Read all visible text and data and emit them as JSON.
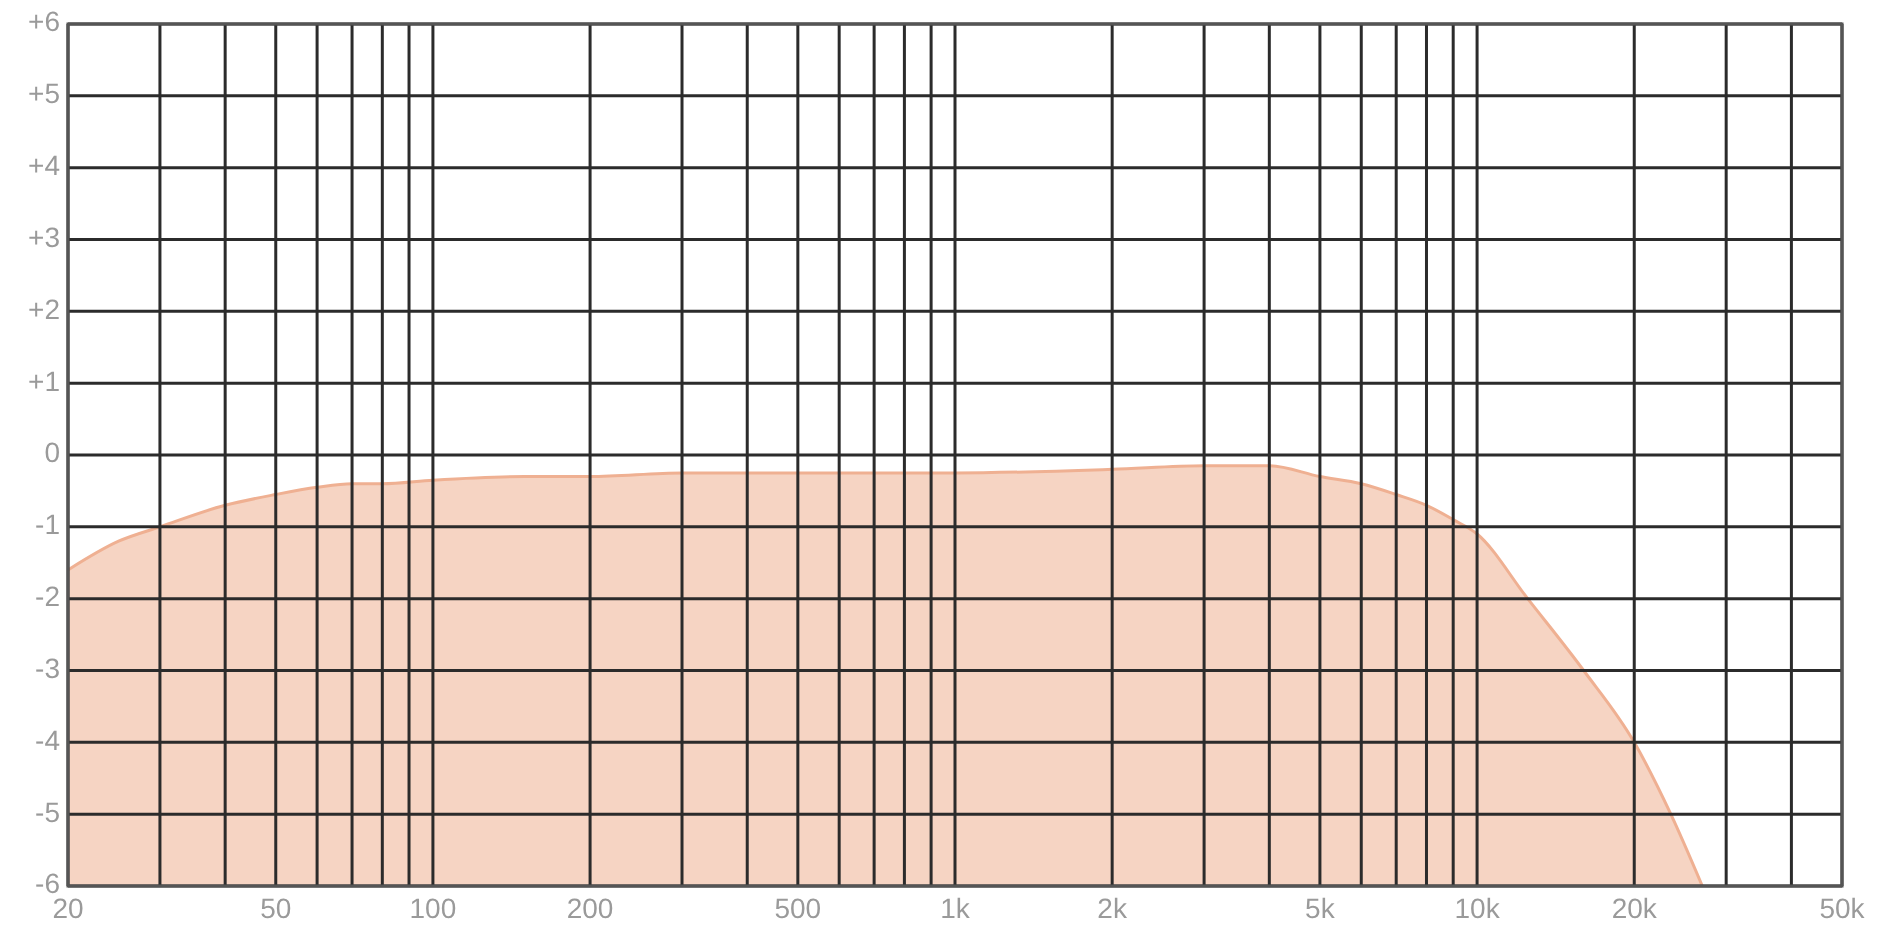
{
  "chart_data": {
    "type": "line",
    "log": "x",
    "grid": true,
    "xlim": [
      20,
      50000
    ],
    "ylim": [
      -6,
      6
    ],
    "xticks": [
      20,
      {
        "value": 30,
        "label": null
      },
      {
        "value": 40,
        "label": null
      },
      50,
      {
        "value": 60,
        "label": null
      },
      {
        "value": 70,
        "label": null
      },
      {
        "value": 80,
        "label": null
      },
      {
        "value": 90,
        "label": null
      },
      100,
      200,
      {
        "value": 300,
        "label": null
      },
      {
        "value": 400,
        "label": null
      },
      500,
      {
        "value": 600,
        "label": null
      },
      {
        "value": 700,
        "label": null
      },
      {
        "value": 800,
        "label": null
      },
      {
        "value": 900,
        "label": null
      },
      {
        "value": 1000,
        "label": "1k"
      },
      {
        "value": 2000,
        "label": "2k"
      },
      {
        "value": 3000,
        "label": null
      },
      {
        "value": 4000,
        "label": null
      },
      {
        "value": 5000,
        "label": "5k"
      },
      {
        "value": 6000,
        "label": null
      },
      {
        "value": 7000,
        "label": null
      },
      {
        "value": 8000,
        "label": null
      },
      {
        "value": 9000,
        "label": null
      },
      {
        "value": 10000,
        "label": "10k"
      },
      {
        "value": 20000,
        "label": "20k"
      },
      {
        "value": 30000,
        "label": null
      },
      {
        "value": 40000,
        "label": null
      },
      {
        "value": 50000,
        "label": "50k"
      }
    ],
    "yticks": [
      {
        "value": 6,
        "label": "+6"
      },
      {
        "value": 5,
        "label": "+5"
      },
      {
        "value": 4,
        "label": "+4"
      },
      {
        "value": 3,
        "label": "+3"
      },
      {
        "value": 2,
        "label": "+2"
      },
      {
        "value": 1,
        "label": "+1"
      },
      0,
      -1,
      -2,
      -3,
      -4,
      -5,
      -6
    ],
    "x": [
      20,
      25,
      30,
      40,
      50,
      60,
      70,
      80,
      100,
      150,
      200,
      300,
      500,
      1000,
      2000,
      3000,
      4000,
      5000,
      6000,
      7000,
      8000,
      9000,
      10000,
      12500,
      16000,
      20000,
      23500,
      27000
    ],
    "series": [
      {
        "color": "#efb092",
        "values": [
          -1.6,
          -1.2,
          -1.0,
          -0.7,
          -0.55,
          -0.45,
          -0.4,
          -0.4,
          -0.35,
          -0.3,
          -0.3,
          -0.25,
          -0.25,
          -0.25,
          -0.2,
          -0.15,
          -0.15,
          -0.3,
          -0.4,
          -0.55,
          -0.7,
          -0.9,
          -1.1,
          -2.0,
          -3.0,
          -4.0,
          -5.0,
          -6.0
        ],
        "lower": [
          -6,
          -6,
          -6,
          -6,
          -6,
          -6,
          -6,
          -6,
          -6,
          -6,
          -6,
          -6,
          -6,
          -6,
          -6,
          -6,
          -6,
          -6,
          -6,
          -6,
          -6,
          -6,
          -6,
          -6,
          -6,
          -6,
          -6,
          -6
        ],
        "upper": [
          -1.6,
          -1.2,
          -1.0,
          -0.7,
          -0.55,
          -0.45,
          -0.4,
          -0.4,
          -0.35,
          -0.3,
          -0.3,
          -0.25,
          -0.25,
          -0.25,
          -0.2,
          -0.15,
          -0.15,
          -0.3,
          -0.4,
          -0.55,
          -0.7,
          -0.9,
          -1.1,
          -2.0,
          -3.0,
          -4.0,
          -5.0,
          -6.0
        ]
      }
    ]
  }
}
